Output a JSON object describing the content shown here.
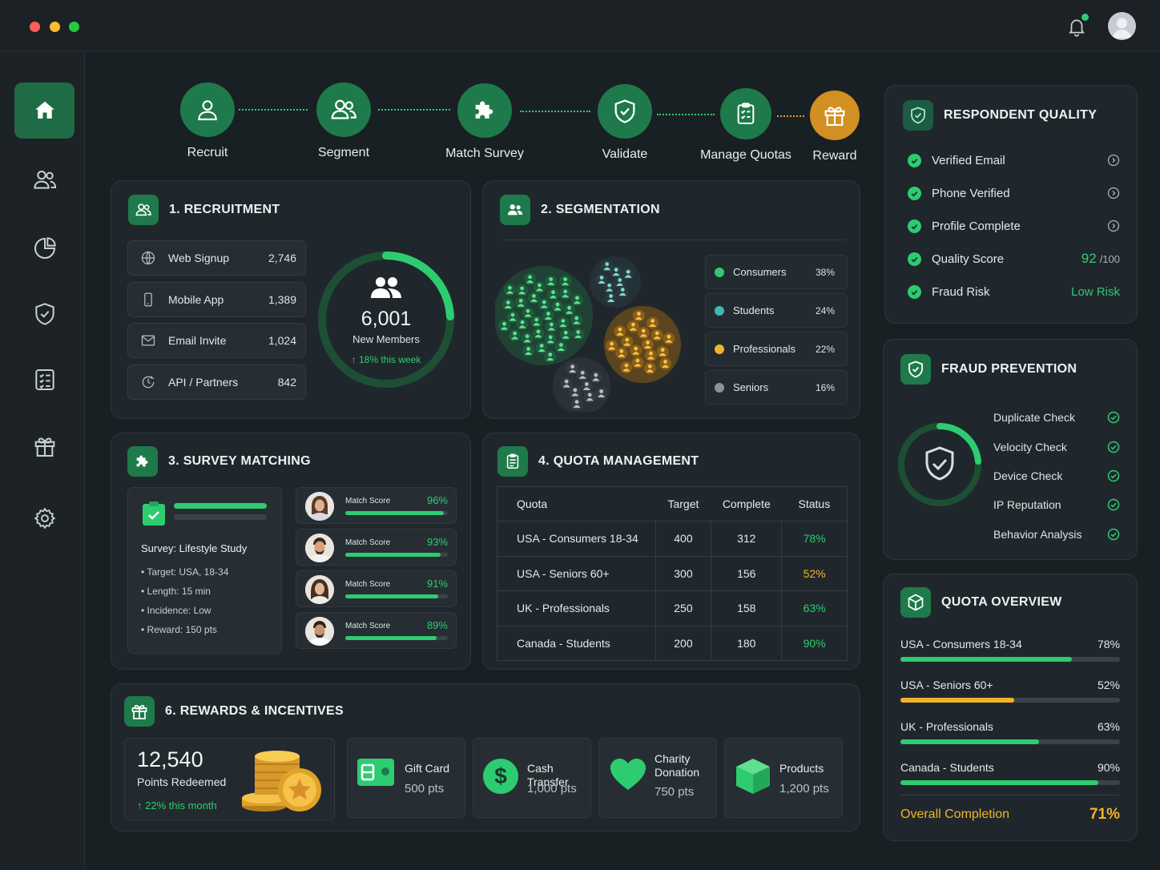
{
  "colors": {
    "accent": "#2ecc71",
    "brand": "#1e7a4a",
    "warning": "#f0b429",
    "background": "#192024",
    "panel": "#20272c"
  },
  "window": {
    "controls": [
      "close",
      "minimize",
      "maximize"
    ]
  },
  "header": {
    "notification_icon": "bell-icon",
    "avatar": "user-avatar"
  },
  "sidebar": {
    "items": [
      {
        "icon": "home-icon",
        "active": true
      },
      {
        "icon": "users-icon"
      },
      {
        "icon": "pie-chart-icon"
      },
      {
        "icon": "shield-icon"
      },
      {
        "icon": "checklist-icon"
      },
      {
        "icon": "gift-icon"
      },
      {
        "icon": "gear-icon"
      }
    ]
  },
  "pipeline": {
    "steps": [
      {
        "label": "Recruit",
        "icon": "user-icon"
      },
      {
        "label": "Segment",
        "icon": "users-icon"
      },
      {
        "label": "Match Survey",
        "icon": "puzzle-icon"
      },
      {
        "label": "Validate",
        "icon": "shield-check-icon"
      },
      {
        "label": "Manage Quotas",
        "icon": "clipboard-icon"
      },
      {
        "label": "Reward",
        "icon": "gift-icon"
      }
    ]
  },
  "recruitment": {
    "title": "1. RECRUITMENT",
    "sources": [
      {
        "name": "Web Signup",
        "value": "2,746",
        "icon": "globe-icon"
      },
      {
        "name": "Mobile App",
        "value": "1,389",
        "icon": "phone-icon"
      },
      {
        "name": "Email Invite",
        "value": "1,024",
        "icon": "mail-icon"
      },
      {
        "name": "API / Partners",
        "value": "842",
        "icon": "api-icon"
      }
    ],
    "total": "6,001",
    "total_label": "New Members",
    "trend": "↑ 18% this week"
  },
  "segmentation": {
    "title": "2. SEGMENTATION",
    "segments": [
      {
        "name": "Consumers",
        "percent": "38%",
        "color": "#2ecc71"
      },
      {
        "name": "Students",
        "percent": "24%",
        "color": "#3fb8b0"
      },
      {
        "name": "Professionals",
        "percent": "22%",
        "color": "#f0b429"
      },
      {
        "name": "Seniors",
        "percent": "16%",
        "color": "#8a9398"
      }
    ]
  },
  "survey_matching": {
    "title": "3. SURVEY MATCHING",
    "survey_name": "Survey: Lifestyle Study",
    "details": [
      "• Target: USA, 18-34",
      "• Length: 15 min",
      "• Incidence: Low",
      "• Reward: 150 pts"
    ],
    "matches": [
      {
        "label": "Match Score",
        "score": "96%",
        "fill": 0.96
      },
      {
        "label": "Match Score",
        "score": "93%",
        "fill": 0.93
      },
      {
        "label": "Match Score",
        "score": "91%",
        "fill": 0.91
      },
      {
        "label": "Match Score",
        "score": "89%",
        "fill": 0.89
      }
    ]
  },
  "quota_management": {
    "title": "4. QUOTA MANAGEMENT",
    "columns": [
      "Quota",
      "Target",
      "Complete",
      "Status"
    ],
    "rows": [
      {
        "quota": "USA - Consumers 18-34",
        "target": "400",
        "complete": "312",
        "status": "78%",
        "status_color": "#2ecc71"
      },
      {
        "quota": "USA - Seniors 60+",
        "target": "300",
        "complete": "156",
        "status": "52%",
        "status_color": "#f0b429"
      },
      {
        "quota": "UK - Professionals",
        "target": "250",
        "complete": "158",
        "status": "63%",
        "status_color": "#2ecc71"
      },
      {
        "quota": "Canada - Students",
        "target": "200",
        "complete": "180",
        "status": "90%",
        "status_color": "#2ecc71"
      }
    ]
  },
  "rewards": {
    "title": "6. REWARDS & INCENTIVES",
    "points": "12,540",
    "points_label": "Points Redeemed",
    "trend": "↑ 22% this month",
    "options": [
      {
        "name": "Gift Card",
        "points": "500 pts",
        "icon": "gift-card-icon"
      },
      {
        "name": "Cash Transfer",
        "points": "1,000 pts",
        "icon": "dollar-icon"
      },
      {
        "name": "Charity Donation",
        "name_line1": "Charity",
        "name_line2": "Donation",
        "points": "750 pts",
        "icon": "heart-icon"
      },
      {
        "name": "Products",
        "points": "1,200 pts",
        "icon": "box-icon"
      }
    ]
  },
  "respondent_quality": {
    "title": "RESPONDENT QUALITY",
    "checks": [
      {
        "name": "Verified Email",
        "detail_icon": "info-icon"
      },
      {
        "name": "Phone Verified",
        "detail_icon": "info-icon"
      },
      {
        "name": "Profile Complete",
        "detail_icon": "info-icon"
      },
      {
        "name": "Quality Score",
        "value": "92",
        "suffix": "/100"
      },
      {
        "name": "Fraud Risk",
        "value": "Low Risk"
      }
    ]
  },
  "fraud_prevention": {
    "title": "FRAUD PREVENTION",
    "checks": [
      "Duplicate Check",
      "Velocity Check",
      "Device Check",
      "IP Reputation",
      "Behavior Analysis"
    ]
  },
  "quota_overview": {
    "title": "QUOTA OVERVIEW",
    "items": [
      {
        "name": "USA - Consumers 18-34",
        "percent": "78%",
        "fill": 0.78,
        "color": "#2ecc71"
      },
      {
        "name": "USA - Seniors 60+",
        "percent": "52%",
        "fill": 0.52,
        "color": "#f0b429"
      },
      {
        "name": "UK - Professionals",
        "percent": "63%",
        "fill": 0.63,
        "color": "#2ecc71"
      },
      {
        "name": "Canada - Students",
        "percent": "90%",
        "fill": 0.9,
        "color": "#2ecc71"
      }
    ],
    "overall_label": "Overall Completion",
    "overall_value": "71%"
  }
}
